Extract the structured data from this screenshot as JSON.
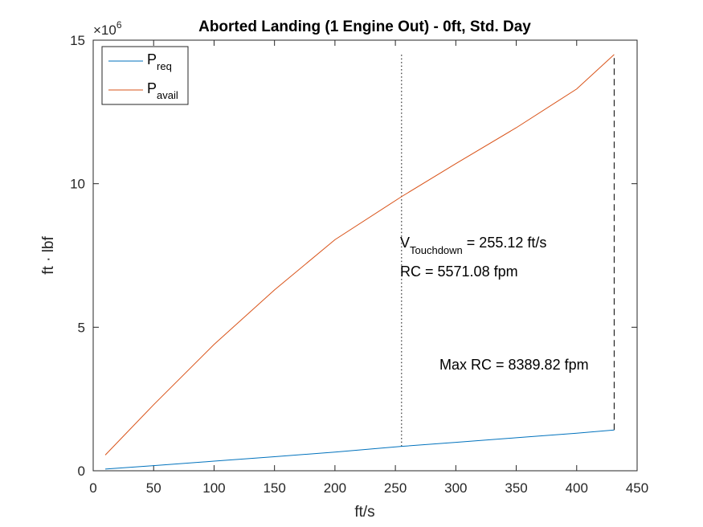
{
  "chart_data": {
    "type": "line",
    "title": "Aborted Landing (1 Engine Out) - 0ft, Std. Day",
    "xlabel": "ft/s",
    "ylabel": "ft · lbf",
    "xlim": [
      0,
      450
    ],
    "ylim": [
      0,
      15000000
    ],
    "y_exponent_label": "×10",
    "y_exponent_power": "6",
    "x_ticks": [
      0,
      50,
      100,
      150,
      200,
      250,
      300,
      350,
      400,
      450
    ],
    "x_tick_labels": [
      "0",
      "50",
      "100",
      "150",
      "200",
      "250",
      "300",
      "350",
      "400",
      "450"
    ],
    "y_ticks": [
      0,
      5000000,
      10000000,
      15000000
    ],
    "y_tick_labels": [
      "0",
      "5",
      "10",
      "15"
    ],
    "grid": false,
    "legend_position": "top-left",
    "series": [
      {
        "name_main": "P",
        "name_sub": "req",
        "color": "#0072BD",
        "x": [
          10,
          50,
          100,
          150,
          200,
          255.12,
          300,
          350,
          400,
          431
        ],
        "y": [
          60000,
          180000,
          335000,
          490000,
          650000,
          850000,
          990000,
          1150000,
          1310000,
          1420000
        ]
      },
      {
        "name_main": "P",
        "name_sub": "avail",
        "color": "#D95319",
        "x": [
          10,
          50,
          100,
          150,
          200,
          255.12,
          300,
          350,
          400,
          431
        ],
        "y": [
          550000,
          2300000,
          4400000,
          6300000,
          8050000,
          9550000,
          10700000,
          11950000,
          13300000,
          14500000
        ]
      }
    ],
    "reference_lines": [
      {
        "kind": "vertical-dotted",
        "x": 255.12,
        "y_from": 850000,
        "y_to": 14500000
      },
      {
        "kind": "vertical-dashed",
        "x": 431,
        "y_from": 1420000,
        "y_to": 14500000
      }
    ],
    "annotations": {
      "touchdown_v_main": "V",
      "touchdown_v_sub": "Touchdown",
      "touchdown_v_value": " = 255.12 ft/s",
      "touchdown_rc": "RC = 5571.08 fpm",
      "max_rc": "Max RC = 8389.82 fpm"
    }
  }
}
